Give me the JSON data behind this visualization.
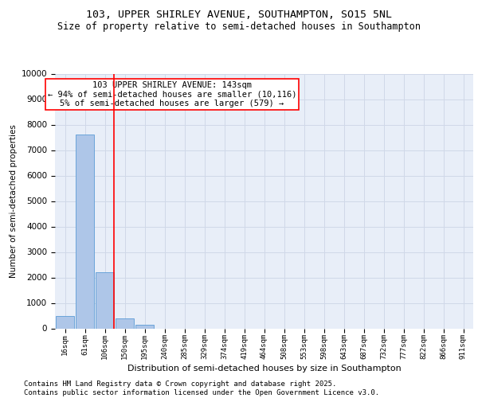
{
  "title_line1": "103, UPPER SHIRLEY AVENUE, SOUTHAMPTON, SO15 5NL",
  "title_line2": "Size of property relative to semi-detached houses in Southampton",
  "xlabel": "Distribution of semi-detached houses by size in Southampton",
  "ylabel": "Number of semi-detached properties",
  "bar_categories": [
    "16sqm",
    "61sqm",
    "106sqm",
    "150sqm",
    "195sqm",
    "240sqm",
    "285sqm",
    "329sqm",
    "374sqm",
    "419sqm",
    "464sqm",
    "508sqm",
    "553sqm",
    "598sqm",
    "643sqm",
    "687sqm",
    "732sqm",
    "777sqm",
    "822sqm",
    "866sqm",
    "911sqm"
  ],
  "bar_values": [
    490,
    7600,
    2200,
    380,
    150,
    0,
    0,
    0,
    0,
    0,
    0,
    0,
    0,
    0,
    0,
    0,
    0,
    0,
    0,
    0,
    0
  ],
  "bar_color": "#aec6e8",
  "bar_edge_color": "#5b9bd5",
  "vline_color": "red",
  "annotation_text": "103 UPPER SHIRLEY AVENUE: 143sqm\n← 94% of semi-detached houses are smaller (10,116)\n5% of semi-detached houses are larger (579) →",
  "annotation_box_color": "white",
  "annotation_box_edge_color": "red",
  "ylim": [
    0,
    10000
  ],
  "yticks": [
    0,
    1000,
    2000,
    3000,
    4000,
    5000,
    6000,
    7000,
    8000,
    9000,
    10000
  ],
  "grid_color": "#d0d8e8",
  "background_color": "#e8eef8",
  "footer_line1": "Contains HM Land Registry data © Crown copyright and database right 2025.",
  "footer_line2": "Contains public sector information licensed under the Open Government Licence v3.0.",
  "title_fontsize": 9.5,
  "subtitle_fontsize": 8.5,
  "annotation_fontsize": 7.5,
  "footer_fontsize": 6.5,
  "ylabel_fontsize": 7.5,
  "xlabel_fontsize": 8,
  "ytick_fontsize": 7.5,
  "xtick_fontsize": 6.5
}
